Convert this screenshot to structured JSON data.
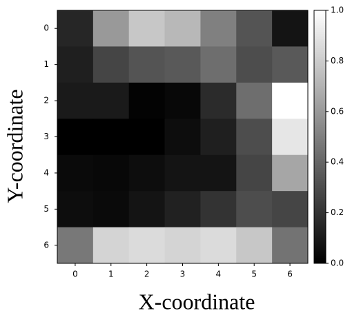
{
  "chart_data": {
    "type": "heatmap",
    "xlabel": "X-coordinate",
    "ylabel": "Y-coordinate",
    "xticks": [
      0,
      1,
      2,
      3,
      4,
      5,
      6
    ],
    "yticks": [
      0,
      1,
      2,
      3,
      4,
      5,
      6
    ],
    "colormap": "gray",
    "values": [
      [
        0.15,
        0.6,
        0.78,
        0.72,
        0.5,
        0.33,
        0.08
      ],
      [
        0.12,
        0.27,
        0.33,
        0.35,
        0.43,
        0.3,
        0.35
      ],
      [
        0.1,
        0.1,
        0.01,
        0.03,
        0.17,
        0.43,
        1.0
      ],
      [
        0.0,
        0.0,
        0.0,
        0.05,
        0.12,
        0.3,
        0.9
      ],
      [
        0.04,
        0.03,
        0.05,
        0.08,
        0.08,
        0.27,
        0.65
      ],
      [
        0.05,
        0.04,
        0.08,
        0.13,
        0.2,
        0.3,
        0.27
      ],
      [
        0.47,
        0.83,
        0.86,
        0.83,
        0.86,
        0.78,
        0.45
      ]
    ],
    "zlim": [
      0,
      1
    ],
    "zticks": [
      {
        "value": 0,
        "label": "0.0"
      },
      {
        "value": 0.2,
        "label": "0.2"
      },
      {
        "value": 0.4,
        "label": "0.4"
      },
      {
        "value": 0.6,
        "label": "0.6"
      },
      {
        "value": 0.8,
        "label": "0.8"
      },
      {
        "value": 1,
        "label": "1.0"
      }
    ]
  }
}
